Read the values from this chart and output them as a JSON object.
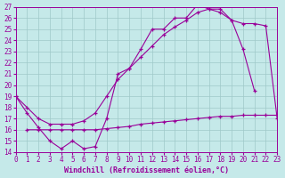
{
  "bg_color": "#c5e9e9",
  "line_color": "#990099",
  "grid_color": "#9fc8c8",
  "xlabel": "Windchill (Refroidissement éolien,°C)",
  "xlim": [
    0,
    23
  ],
  "ylim": [
    14,
    27
  ],
  "xticks": [
    0,
    1,
    2,
    3,
    4,
    5,
    6,
    7,
    8,
    9,
    10,
    11,
    12,
    13,
    14,
    15,
    16,
    17,
    18,
    19,
    20,
    21,
    22,
    23
  ],
  "yticks": [
    14,
    15,
    16,
    17,
    18,
    19,
    20,
    21,
    22,
    23,
    24,
    25,
    26,
    27
  ],
  "line1_x": [
    0,
    1,
    2,
    3,
    4,
    5,
    6,
    7,
    8,
    9,
    10,
    11,
    12,
    13,
    14,
    15,
    16,
    17,
    18,
    19,
    20,
    21
  ],
  "line1_y": [
    19,
    17.5,
    16.2,
    15.0,
    14.3,
    15.0,
    14.3,
    14.5,
    17.0,
    21.0,
    21.5,
    23.2,
    25.0,
    25.0,
    26.0,
    26.0,
    27.2,
    26.8,
    26.8,
    25.8,
    23.2,
    19.5
  ],
  "line2_x": [
    0,
    1,
    2,
    3,
    4,
    5,
    6,
    7,
    8,
    9,
    10,
    11,
    12,
    13,
    14,
    15,
    16,
    17,
    18,
    19,
    20,
    21,
    22,
    23
  ],
  "line2_y": [
    19.0,
    18.0,
    17.0,
    16.5,
    16.5,
    16.5,
    16.8,
    17.5,
    19.0,
    20.5,
    21.5,
    22.5,
    23.5,
    24.5,
    25.2,
    25.8,
    26.5,
    26.8,
    26.5,
    25.8,
    25.5,
    25.5,
    25.3,
    17.0
  ],
  "line3_x": [
    0,
    1,
    2,
    3,
    4,
    5,
    6,
    7,
    8,
    9,
    10,
    11,
    12,
    13,
    14,
    15,
    16,
    17,
    18,
    19,
    20,
    21,
    22,
    23
  ],
  "line3_y": [
    null,
    16.0,
    16.0,
    16.0,
    16.0,
    16.0,
    16.0,
    16.0,
    16.1,
    16.2,
    16.3,
    16.5,
    16.6,
    16.7,
    16.8,
    16.9,
    17.0,
    17.1,
    17.2,
    17.2,
    17.3,
    17.3,
    17.3,
    17.3
  ]
}
